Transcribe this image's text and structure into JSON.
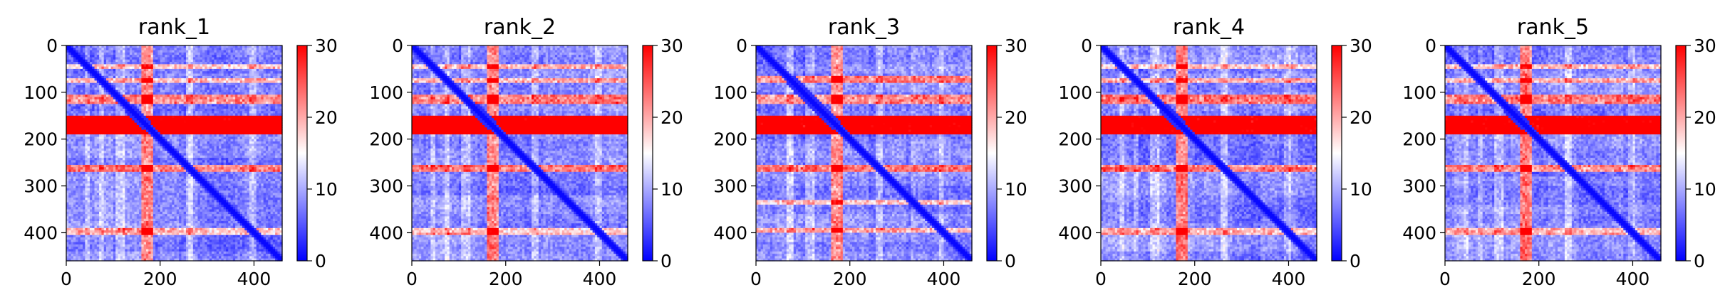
{
  "chart_data": [
    {
      "type": "heatmap",
      "title": "rank_1",
      "x_ticks": [
        0,
        200,
        400
      ],
      "y_ticks": [
        0,
        100,
        200,
        300,
        400
      ],
      "xlim": [
        0,
        460
      ],
      "ylim": [
        460,
        0
      ],
      "colorbar": {
        "min": 0,
        "max": 30,
        "ticks": [
          0,
          10,
          20,
          30
        ]
      },
      "colormap": [
        "#0000ff",
        "#ffffff",
        "#ff0000"
      ],
      "features": {
        "strong_band": [
          150,
          190
        ],
        "mid_bands": [
          [
            105,
            125
          ],
          [
            255,
            272
          ]
        ],
        "weak_bands": [
          [
            40,
            50
          ],
          [
            70,
            78
          ],
          [
            390,
            405
          ]
        ],
        "column_band": [
          160,
          185
        ],
        "diagonal_gap": [
          [
            125,
            180
          ]
        ]
      }
    },
    {
      "type": "heatmap",
      "title": "rank_2",
      "x_ticks": [
        0,
        200,
        400
      ],
      "y_ticks": [
        0,
        100,
        200,
        300,
        400
      ],
      "xlim": [
        0,
        460
      ],
      "ylim": [
        460,
        0
      ],
      "colorbar": {
        "min": 0,
        "max": 30,
        "ticks": [
          0,
          10,
          20,
          30
        ]
      },
      "colormap": [
        "#0000ff",
        "#ffffff",
        "#ff0000"
      ],
      "features": {
        "strong_band": [
          150,
          190
        ],
        "mid_bands": [
          [
            105,
            125
          ],
          [
            255,
            272
          ]
        ],
        "weak_bands": [
          [
            40,
            50
          ],
          [
            70,
            78
          ],
          [
            390,
            405
          ]
        ],
        "column_band": [
          160,
          185
        ],
        "diagonal_gap": [
          [
            125,
            180
          ]
        ]
      }
    },
    {
      "type": "heatmap",
      "title": "rank_3",
      "x_ticks": [
        0,
        200,
        400
      ],
      "y_ticks": [
        0,
        100,
        200,
        300,
        400
      ],
      "xlim": [
        0,
        460
      ],
      "ylim": [
        460,
        0
      ],
      "colorbar": {
        "min": 0,
        "max": 30,
        "ticks": [
          0,
          10,
          20,
          30
        ]
      },
      "colormap": [
        "#0000ff",
        "#ffffff",
        "#ff0000"
      ],
      "features": {
        "strong_band": [
          150,
          190
        ],
        "mid_bands": [
          [
            65,
            78
          ],
          [
            105,
            125
          ],
          [
            255,
            270
          ]
        ],
        "weak_bands": [
          [
            330,
            340
          ],
          [
            390,
            400
          ]
        ],
        "column_band": [
          160,
          185
        ],
        "diagonal_gap": [
          [
            65,
            180
          ]
        ]
      }
    },
    {
      "type": "heatmap",
      "title": "rank_4",
      "x_ticks": [
        0,
        200,
        400
      ],
      "y_ticks": [
        0,
        100,
        200,
        300,
        400
      ],
      "xlim": [
        0,
        460
      ],
      "ylim": [
        460,
        0
      ],
      "colorbar": {
        "min": 0,
        "max": 30,
        "ticks": [
          0,
          10,
          20,
          30
        ]
      },
      "colormap": [
        "#0000ff",
        "#ffffff",
        "#ff0000"
      ],
      "features": {
        "strong_band": [
          150,
          190
        ],
        "mid_bands": [
          [
            105,
            125
          ],
          [
            255,
            272
          ]
        ],
        "weak_bands": [
          [
            40,
            50
          ],
          [
            70,
            78
          ],
          [
            390,
            405
          ]
        ],
        "column_band": [
          160,
          185
        ],
        "diagonal_gap": [
          [
            125,
            180
          ]
        ]
      }
    },
    {
      "type": "heatmap",
      "title": "rank_5",
      "x_ticks": [
        0,
        200,
        400
      ],
      "y_ticks": [
        0,
        100,
        200,
        300,
        400
      ],
      "xlim": [
        0,
        460
      ],
      "ylim": [
        460,
        0
      ],
      "colorbar": {
        "min": 0,
        "max": 30,
        "ticks": [
          0,
          10,
          20,
          30
        ]
      },
      "colormap": [
        "#0000ff",
        "#ffffff",
        "#ff0000"
      ],
      "features": {
        "strong_band": [
          150,
          190
        ],
        "mid_bands": [
          [
            105,
            125
          ],
          [
            255,
            272
          ]
        ],
        "weak_bands": [
          [
            40,
            50
          ],
          [
            70,
            78
          ],
          [
            390,
            405
          ]
        ],
        "column_band": [
          160,
          185
        ],
        "diagonal_gap": [
          [
            125,
            180
          ]
        ]
      }
    }
  ]
}
